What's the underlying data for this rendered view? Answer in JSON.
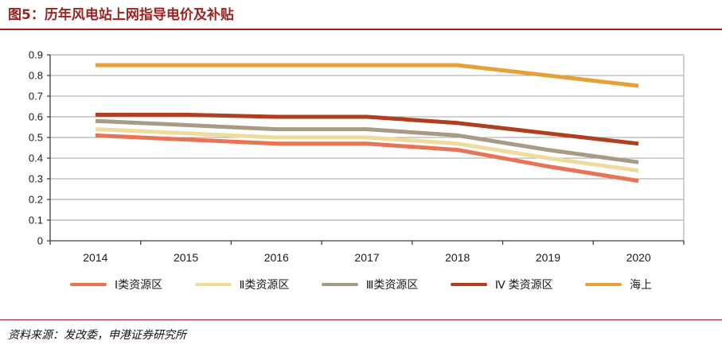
{
  "title": "图5：历年风电站上网指导电价及补贴",
  "source": "资料来源：发改委，申港证券研究所",
  "colors": {
    "accent_red": "#9c2220",
    "grid": "#a6a6a6",
    "axis": "#404040"
  },
  "chart_data": {
    "type": "line",
    "title": "历年风电站上网指导电价及补贴",
    "xlabel": "",
    "ylabel": "",
    "categories": [
      "2014",
      "2015",
      "2016",
      "2017",
      "2018",
      "2019",
      "2020"
    ],
    "series": [
      {
        "name": "Ⅰ类资源区",
        "color": "#e87355",
        "values": [
          0.51,
          0.49,
          0.47,
          0.47,
          0.44,
          0.36,
          0.29
        ]
      },
      {
        "name": "Ⅱ类资源区",
        "color": "#eedc9c",
        "values": [
          0.54,
          0.52,
          0.5,
          0.5,
          0.47,
          0.4,
          0.34
        ]
      },
      {
        "name": "Ⅲ类资源区",
        "color": "#a89b85",
        "values": [
          0.58,
          0.56,
          0.54,
          0.54,
          0.51,
          0.44,
          0.38
        ]
      },
      {
        "name": "Ⅳ 类资源区",
        "color": "#b03e20",
        "values": [
          0.61,
          0.61,
          0.6,
          0.6,
          0.57,
          0.52,
          0.47
        ]
      },
      {
        "name": "海上",
        "color": "#e5a03a",
        "values": [
          0.85,
          0.85,
          0.85,
          0.85,
          0.85,
          0.8,
          0.75
        ]
      }
    ],
    "ylim": [
      0,
      0.9
    ],
    "ytick_labels": [
      "0",
      "0.1",
      "0.2",
      "0.3",
      "0.4",
      "0.5",
      "0.6",
      "0.7",
      "0.8",
      "0.9"
    ],
    "grid": "horizontal",
    "legend_position": "bottom"
  }
}
